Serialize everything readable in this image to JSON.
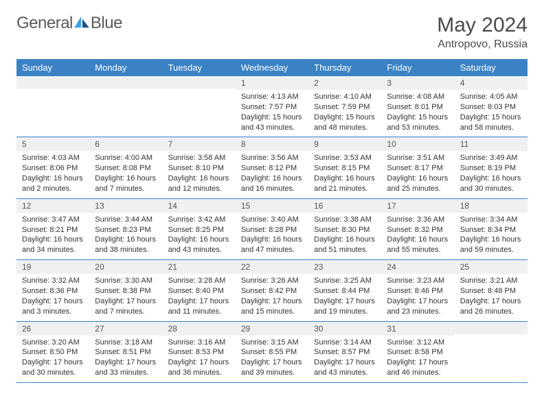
{
  "brand": {
    "name_a": "General",
    "name_b": "Blue"
  },
  "colors": {
    "header_bg": "#3b82c4",
    "header_fg": "#ffffff",
    "daynum_bg": "#eef0f2",
    "row_border": "#3b82c4",
    "logo_light": "#3ea0e0",
    "logo_dark": "#1b4f8a"
  },
  "title": {
    "month": "May 2024",
    "location": "Antropovo, Russia"
  },
  "weekdays": [
    "Sunday",
    "Monday",
    "Tuesday",
    "Wednesday",
    "Thursday",
    "Friday",
    "Saturday"
  ],
  "weeks": [
    [
      {
        "n": "",
        "lines": []
      },
      {
        "n": "",
        "lines": []
      },
      {
        "n": "",
        "lines": []
      },
      {
        "n": "1",
        "lines": [
          "Sunrise: 4:13 AM",
          "Sunset: 7:57 PM",
          "Daylight: 15 hours",
          "and 43 minutes."
        ]
      },
      {
        "n": "2",
        "lines": [
          "Sunrise: 4:10 AM",
          "Sunset: 7:59 PM",
          "Daylight: 15 hours",
          "and 48 minutes."
        ]
      },
      {
        "n": "3",
        "lines": [
          "Sunrise: 4:08 AM",
          "Sunset: 8:01 PM",
          "Daylight: 15 hours",
          "and 53 minutes."
        ]
      },
      {
        "n": "4",
        "lines": [
          "Sunrise: 4:05 AM",
          "Sunset: 8:03 PM",
          "Daylight: 15 hours",
          "and 58 minutes."
        ]
      }
    ],
    [
      {
        "n": "5",
        "lines": [
          "Sunrise: 4:03 AM",
          "Sunset: 8:06 PM",
          "Daylight: 16 hours",
          "and 2 minutes."
        ]
      },
      {
        "n": "6",
        "lines": [
          "Sunrise: 4:00 AM",
          "Sunset: 8:08 PM",
          "Daylight: 16 hours",
          "and 7 minutes."
        ]
      },
      {
        "n": "7",
        "lines": [
          "Sunrise: 3:58 AM",
          "Sunset: 8:10 PM",
          "Daylight: 16 hours",
          "and 12 minutes."
        ]
      },
      {
        "n": "8",
        "lines": [
          "Sunrise: 3:56 AM",
          "Sunset: 8:12 PM",
          "Daylight: 16 hours",
          "and 16 minutes."
        ]
      },
      {
        "n": "9",
        "lines": [
          "Sunrise: 3:53 AM",
          "Sunset: 8:15 PM",
          "Daylight: 16 hours",
          "and 21 minutes."
        ]
      },
      {
        "n": "10",
        "lines": [
          "Sunrise: 3:51 AM",
          "Sunset: 8:17 PM",
          "Daylight: 16 hours",
          "and 25 minutes."
        ]
      },
      {
        "n": "11",
        "lines": [
          "Sunrise: 3:49 AM",
          "Sunset: 8:19 PM",
          "Daylight: 16 hours",
          "and 30 minutes."
        ]
      }
    ],
    [
      {
        "n": "12",
        "lines": [
          "Sunrise: 3:47 AM",
          "Sunset: 8:21 PM",
          "Daylight: 16 hours",
          "and 34 minutes."
        ]
      },
      {
        "n": "13",
        "lines": [
          "Sunrise: 3:44 AM",
          "Sunset: 8:23 PM",
          "Daylight: 16 hours",
          "and 38 minutes."
        ]
      },
      {
        "n": "14",
        "lines": [
          "Sunrise: 3:42 AM",
          "Sunset: 8:25 PM",
          "Daylight: 16 hours",
          "and 43 minutes."
        ]
      },
      {
        "n": "15",
        "lines": [
          "Sunrise: 3:40 AM",
          "Sunset: 8:28 PM",
          "Daylight: 16 hours",
          "and 47 minutes."
        ]
      },
      {
        "n": "16",
        "lines": [
          "Sunrise: 3:38 AM",
          "Sunset: 8:30 PM",
          "Daylight: 16 hours",
          "and 51 minutes."
        ]
      },
      {
        "n": "17",
        "lines": [
          "Sunrise: 3:36 AM",
          "Sunset: 8:32 PM",
          "Daylight: 16 hours",
          "and 55 minutes."
        ]
      },
      {
        "n": "18",
        "lines": [
          "Sunrise: 3:34 AM",
          "Sunset: 8:34 PM",
          "Daylight: 16 hours",
          "and 59 minutes."
        ]
      }
    ],
    [
      {
        "n": "19",
        "lines": [
          "Sunrise: 3:32 AM",
          "Sunset: 8:36 PM",
          "Daylight: 17 hours",
          "and 3 minutes."
        ]
      },
      {
        "n": "20",
        "lines": [
          "Sunrise: 3:30 AM",
          "Sunset: 8:38 PM",
          "Daylight: 17 hours",
          "and 7 minutes."
        ]
      },
      {
        "n": "21",
        "lines": [
          "Sunrise: 3:28 AM",
          "Sunset: 8:40 PM",
          "Daylight: 17 hours",
          "and 11 minutes."
        ]
      },
      {
        "n": "22",
        "lines": [
          "Sunrise: 3:26 AM",
          "Sunset: 8:42 PM",
          "Daylight: 17 hours",
          "and 15 minutes."
        ]
      },
      {
        "n": "23",
        "lines": [
          "Sunrise: 3:25 AM",
          "Sunset: 8:44 PM",
          "Daylight: 17 hours",
          "and 19 minutes."
        ]
      },
      {
        "n": "24",
        "lines": [
          "Sunrise: 3:23 AM",
          "Sunset: 8:46 PM",
          "Daylight: 17 hours",
          "and 23 minutes."
        ]
      },
      {
        "n": "25",
        "lines": [
          "Sunrise: 3:21 AM",
          "Sunset: 8:48 PM",
          "Daylight: 17 hours",
          "and 26 minutes."
        ]
      }
    ],
    [
      {
        "n": "26",
        "lines": [
          "Sunrise: 3:20 AM",
          "Sunset: 8:50 PM",
          "Daylight: 17 hours",
          "and 30 minutes."
        ]
      },
      {
        "n": "27",
        "lines": [
          "Sunrise: 3:18 AM",
          "Sunset: 8:51 PM",
          "Daylight: 17 hours",
          "and 33 minutes."
        ]
      },
      {
        "n": "28",
        "lines": [
          "Sunrise: 3:16 AM",
          "Sunset: 8:53 PM",
          "Daylight: 17 hours",
          "and 36 minutes."
        ]
      },
      {
        "n": "29",
        "lines": [
          "Sunrise: 3:15 AM",
          "Sunset: 8:55 PM",
          "Daylight: 17 hours",
          "and 39 minutes."
        ]
      },
      {
        "n": "30",
        "lines": [
          "Sunrise: 3:14 AM",
          "Sunset: 8:57 PM",
          "Daylight: 17 hours",
          "and 43 minutes."
        ]
      },
      {
        "n": "31",
        "lines": [
          "Sunrise: 3:12 AM",
          "Sunset: 8:58 PM",
          "Daylight: 17 hours",
          "and 46 minutes."
        ]
      },
      {
        "n": "",
        "lines": []
      }
    ]
  ]
}
